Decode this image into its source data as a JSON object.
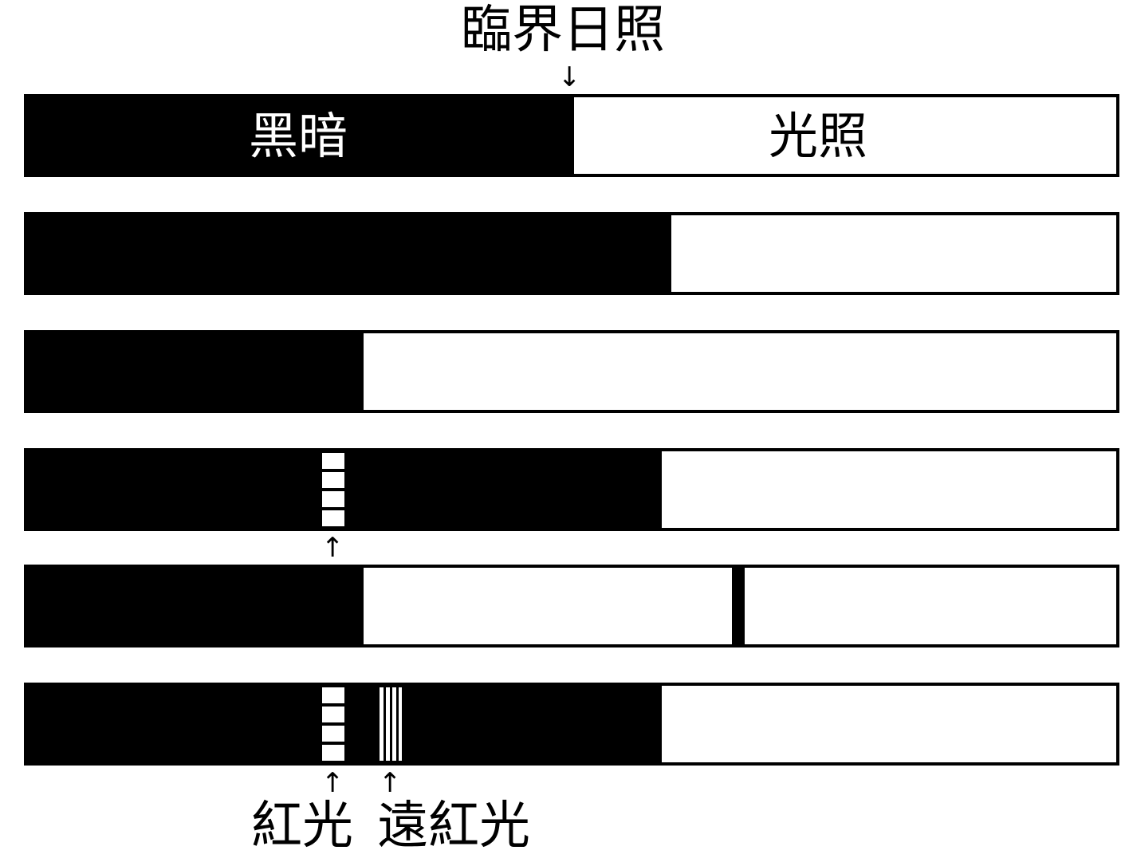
{
  "labels": {
    "critical_daylength": "臨界日照",
    "dark": "黑暗",
    "light": "光照",
    "red_light": "紅光",
    "far_red_light": "遠紅光"
  },
  "bars": [
    {
      "dark_fraction": 0.5
    },
    {
      "dark_fraction": 0.59
    },
    {
      "dark_fraction": 0.31
    },
    {
      "dark_fraction": 0.58,
      "flashes": [
        "red"
      ]
    },
    {
      "dark_fraction": 0.31,
      "dark_interruption": true
    },
    {
      "dark_fraction": 0.58,
      "flashes": [
        "red",
        "far-red"
      ]
    }
  ],
  "colors": {
    "dark": "#000000",
    "light": "#ffffff"
  },
  "icons": {
    "arrow_down": "arrow-down-icon",
    "arrow_up": "arrow-up-icon"
  }
}
